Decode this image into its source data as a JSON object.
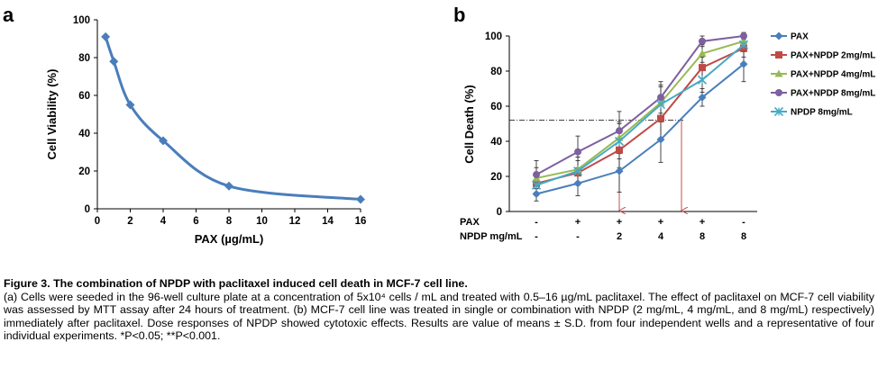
{
  "chart_data": [
    {
      "type": "line",
      "panel_label": "a",
      "xlabel": "PAX (µg/mL)",
      "ylabel": "Cell Viability (%)",
      "xlim": [
        0,
        16
      ],
      "ylim": [
        0,
        100
      ],
      "x_ticks": [
        "0",
        "2",
        "4",
        "6",
        "8",
        "10",
        "12",
        "14",
        "16"
      ],
      "y_ticks": [
        "0",
        "20",
        "40",
        "60",
        "80",
        "100"
      ],
      "color": "#4A7EBB",
      "x": [
        0.5,
        1,
        2,
        4,
        8,
        16
      ],
      "y": [
        91,
        78,
        55,
        36,
        12,
        5
      ],
      "grid": false
    },
    {
      "type": "line",
      "panel_label": "b",
      "ylabel": "Cell Death (%)",
      "ylim": [
        0,
        100
      ],
      "y_ticks": [
        "0",
        "20",
        "40",
        "60",
        "80",
        "100"
      ],
      "categories": [
        "1",
        "2",
        "3",
        "4",
        "5",
        "6"
      ],
      "x_table": {
        "rows": [
          {
            "label": "PAX",
            "values": [
              "-",
              "+",
              "+",
              "+",
              "+",
              "-"
            ]
          },
          {
            "label": "NPDP mg/mL",
            "values": [
              "-",
              "-",
              "2",
              "4",
              "8",
              "8"
            ]
          }
        ]
      },
      "series": [
        {
          "name": "PAX",
          "color": "#4A7EBB",
          "marker": "diamond",
          "values": [
            10,
            16,
            23,
            41,
            65,
            84
          ],
          "errors": [
            4,
            7,
            12,
            13,
            5,
            10
          ]
        },
        {
          "name": "PAX+NPDP 2mg/mL",
          "color": "#BE4B48",
          "marker": "square",
          "values": [
            16,
            22,
            35,
            53,
            82,
            93
          ],
          "errors": [
            5,
            7,
            10,
            12,
            6,
            5
          ]
        },
        {
          "name": "PAX+NPDP 4mg/mL",
          "color": "#98B954",
          "marker": "triangle",
          "values": [
            19,
            24,
            42,
            62,
            90,
            97
          ],
          "errors": [
            6,
            7,
            9,
            10,
            5,
            4
          ]
        },
        {
          "name": "PAX+NPDP 8mg/mL",
          "color": "#7D60A0",
          "marker": "circle",
          "values": [
            21,
            34,
            46,
            65,
            97,
            100
          ],
          "errors": [
            8,
            9,
            11,
            9,
            3,
            2
          ]
        },
        {
          "name": "NPDP 8mg/mL",
          "color": "#46AAC5",
          "marker": "x",
          "values": [
            15,
            23,
            40,
            61,
            75,
            95
          ],
          "errors": [
            6,
            8,
            10,
            10,
            7,
            4
          ]
        }
      ],
      "reference_line": {
        "y": 52,
        "style": "dash-dot"
      },
      "annotation_arrows": [
        {
          "x_category": 3,
          "from_y": 52,
          "color": "#C0504D"
        },
        {
          "x_category": 4.5,
          "from_y": 52,
          "color": "#C0504D"
        }
      ],
      "legend_position": "right",
      "grid": false
    }
  ],
  "caption": {
    "title": "Figure 3. The combination of NPDP with paclitaxel induced cell death in MCF-7 cell line.",
    "lines": [
      "(a) Cells were seeded in the 96-well culture plate at a concentration of 5x10⁴ cells / mL and treated with 0.5–16 µg/mL paclitaxel. The effect of paclitaxel on MCF-7 cell viability was assessed by MTT assay after 24 hours of treatment. (b) MCF-7 cell line was treated in single or combination with NPDP (2 mg/mL, 4 mg/mL, and 8 mg/mL) respectively) immediately after paclitaxel. Dose responses of NPDP showed cytotoxic effects. Results are value of means ± S.D. from four independent wells and a representative of four individual experiments. *P<0.05; **P<0.001."
    ]
  }
}
